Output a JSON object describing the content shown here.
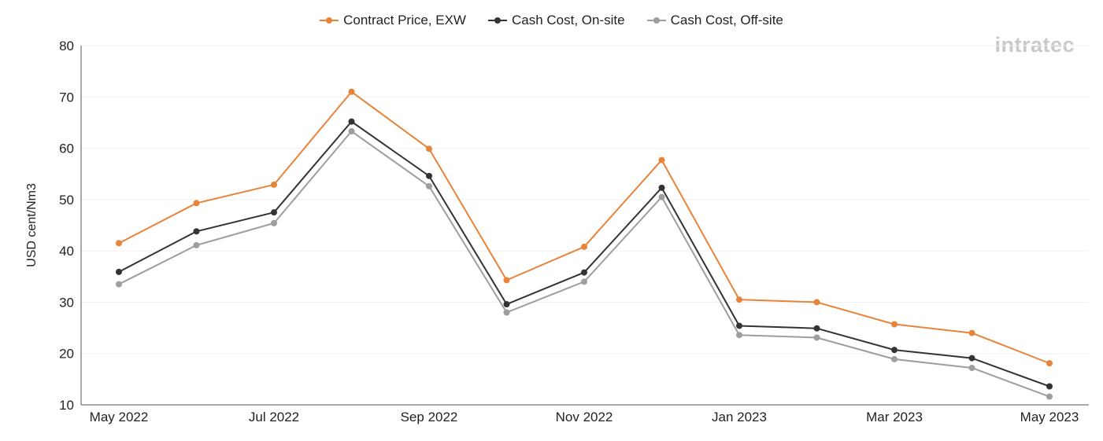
{
  "branding": {
    "logo_text": "intratec"
  },
  "chart_data": {
    "type": "line",
    "title": "",
    "xlabel": "",
    "ylabel": "USD cent/Nm3",
    "ylim": [
      10,
      80
    ],
    "y_ticks": [
      10,
      20,
      30,
      40,
      50,
      60,
      70,
      80
    ],
    "x": [
      "May 2022",
      "Jun 2022",
      "Jul 2022",
      "Aug 2022",
      "Sep 2022",
      "Oct 2022",
      "Nov 2022",
      "Dec 2022",
      "Jan 2023",
      "Feb 2023",
      "Mar 2023",
      "Apr 2023",
      "May 2023"
    ],
    "x_tick_labels": [
      "May 2022",
      "Jul 2022",
      "Sep 2022",
      "Nov 2022",
      "Jan 2023",
      "Mar 2023",
      "May 2023"
    ],
    "grid": true,
    "legend_position": "top-center",
    "series": [
      {
        "name": "Contract Price, EXW",
        "color": "#e8833a",
        "values": [
          41.5,
          49.3,
          52.9,
          71.0,
          59.9,
          34.3,
          40.8,
          57.7,
          30.5,
          30.0,
          25.7,
          24.0,
          18.1
        ]
      },
      {
        "name": "Cash Cost, On-site",
        "color": "#333333",
        "values": [
          35.9,
          43.8,
          47.5,
          65.2,
          54.6,
          29.6,
          35.8,
          52.3,
          25.4,
          24.9,
          20.7,
          19.1,
          13.6
        ]
      },
      {
        "name": "Cash Cost, Off-site",
        "color": "#9e9e9e",
        "values": [
          33.5,
          41.1,
          45.4,
          63.3,
          52.6,
          28.0,
          34.0,
          50.5,
          23.6,
          23.1,
          18.9,
          17.2,
          11.6
        ]
      }
    ]
  }
}
